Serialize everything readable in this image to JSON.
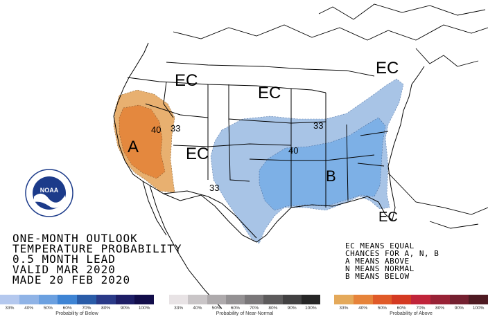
{
  "map": {
    "labels": {
      "ec_northwest": "EC",
      "ec_north_central": "EC",
      "ec_northeast": "EC",
      "ec_southwest": "EC",
      "ec_florida": "EC",
      "above_label": "A",
      "below_label": "B",
      "contour_40_west": "40",
      "contour_33_west": "33",
      "contour_33_south": "33",
      "contour_33_east": "33",
      "contour_40_east": "40"
    }
  },
  "title": {
    "line1": "ONE-MONTH OUTLOOK",
    "line2": "TEMPERATURE PROBABILITY",
    "line3": "0.5 MONTH LEAD",
    "line4": "VALID MAR 2020",
    "line5": "MADE 20 FEB 2020"
  },
  "key": {
    "line1": "EC MEANS EQUAL",
    "line2": "CHANCES FOR A, N, B",
    "line3": "A MEANS ABOVE",
    "line4": "N MEANS NORMAL",
    "line5": "B MEANS BELOW"
  },
  "logo": {
    "icon": "noaa-logo",
    "text": "NOAA"
  },
  "legend": {
    "below": {
      "caption": "Probability of Below",
      "ticks": [
        "33%",
        "40%",
        "50%",
        "60%",
        "70%",
        "80%",
        "90%",
        "100%"
      ],
      "colors": [
        "#b4c8ee",
        "#8fb3e6",
        "#6ba0e0",
        "#3e84d4",
        "#2a5ca8",
        "#2a3a88",
        "#1e1e66",
        "#120d4a"
      ]
    },
    "normal": {
      "caption": "Probability of Near-Normal",
      "ticks": [
        "33%",
        "40%",
        "50%",
        "60%",
        "70%",
        "80%",
        "90%",
        "100%"
      ],
      "colors": [
        "#e8e3e5",
        "#c9c5c7",
        "#aeaaac",
        "#949193",
        "#7a7779",
        "#5d5b5c",
        "#424142",
        "#262626"
      ]
    },
    "above": {
      "caption": "Probability of Above",
      "ticks": [
        "33%",
        "40%",
        "50%",
        "60%",
        "70%",
        "80%",
        "90%",
        "100%"
      ],
      "colors": [
        "#e4a95a",
        "#e6833a",
        "#e05a28",
        "#d43a22",
        "#c0243a",
        "#982236",
        "#742030",
        "#4e1a22"
      ]
    }
  },
  "colors": {
    "above_33": "#e8b070",
    "above_40": "#e4883e",
    "below_33": "#a8c4e6",
    "below_40": "#7db0e6",
    "lines": "#000000"
  }
}
